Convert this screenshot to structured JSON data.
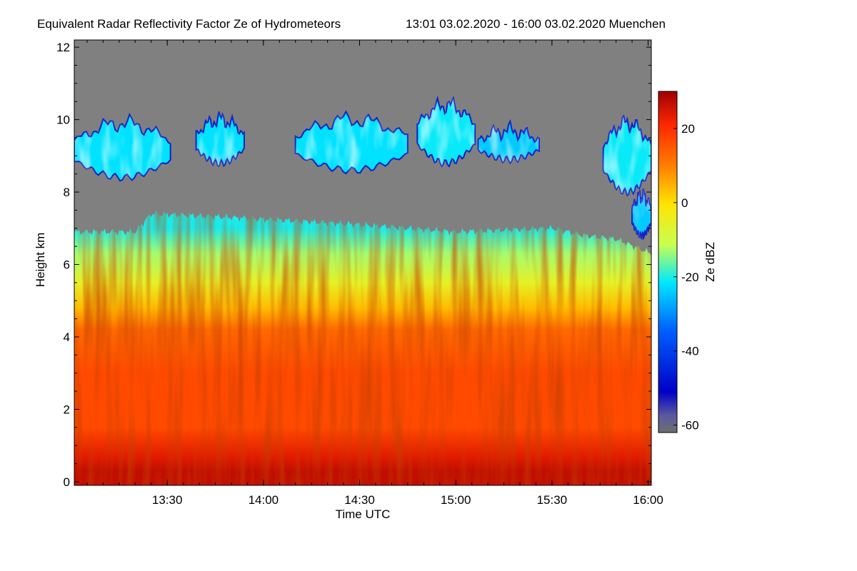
{
  "chart_data": {
    "type": "heatmap",
    "title": "Equivalent Radar Reflectivity Factor Ze of Hydrometeors",
    "subtitle": "13:01 03.02.2020 - 16:00 03.02.2020 Muenchen",
    "xlabel": "Time UTC",
    "ylabel": "Height km",
    "colorbar_label": "Ze dBZ",
    "xlim_minutes_utc": [
      781,
      961
    ],
    "x_tick_values_minutes_utc": [
      810,
      840,
      870,
      900,
      930,
      960
    ],
    "x_tick_labels": [
      "13:30",
      "14:00",
      "14:30",
      "15:00",
      "15:30",
      "16:00"
    ],
    "ylim": [
      -0.1,
      12.2
    ],
    "y_ticks": [
      0,
      2,
      4,
      6,
      8,
      10,
      12
    ],
    "y_tick_labels": [
      "0",
      "2",
      "4",
      "6",
      "8",
      "10",
      "12"
    ],
    "zlim": [
      -62,
      30
    ],
    "colorbar_ticks": [
      20,
      0,
      -20,
      -40,
      -60
    ],
    "colorbar_tick_labels": [
      "20",
      "0",
      "-20",
      "-40",
      "-60"
    ],
    "colormap": [
      "#6e6e6e",
      "#0000c8",
      "#0060ff",
      "#00e8ff",
      "#c8ff50",
      "#ffe400",
      "#ff8000",
      "#ff2800",
      "#a00000"
    ],
    "no_signal_color": "#808080",
    "lower_cloud": {
      "top_height_km": {
        "x_minutes": [
          781,
          800,
          805,
          830,
          870,
          900,
          930,
          940,
          950,
          961
        ],
        "values": [
          6.9,
          6.9,
          7.4,
          7.3,
          7.1,
          6.9,
          7.0,
          6.8,
          6.7,
          6.3
        ]
      },
      "profile_ze_dbz": {
        "height_km": [
          0.3,
          0.7,
          1.5,
          3.0,
          4.2,
          4.8,
          5.5,
          6.3,
          7.0
        ],
        "values": [
          26,
          22,
          14,
          14,
          10,
          0,
          -10,
          -18,
          -26
        ]
      }
    },
    "upper_cloud_layers": [
      {
        "x_start_minutes": 781,
        "x_end_minutes": 811,
        "base_km": 8.4,
        "top_km": 9.9,
        "ze_dbz": -28
      },
      {
        "x_start_minutes": 819,
        "x_end_minutes": 834,
        "base_km": 8.8,
        "top_km": 10.0,
        "ze_dbz": -28
      },
      {
        "x_start_minutes": 850,
        "x_end_minutes": 885,
        "base_km": 8.6,
        "top_km": 10.0,
        "ze_dbz": -28
      },
      {
        "x_start_minutes": 888,
        "x_end_minutes": 906,
        "base_km": 8.8,
        "top_km": 10.4,
        "ze_dbz": -27
      },
      {
        "x_start_minutes": 907,
        "x_end_minutes": 926,
        "base_km": 8.9,
        "top_km": 9.7,
        "ze_dbz": -30
      },
      {
        "x_start_minutes": 946,
        "x_end_minutes": 961,
        "base_km": 8.0,
        "top_km": 9.9,
        "ze_dbz": -27
      },
      {
        "x_start_minutes": 955,
        "x_end_minutes": 961,
        "base_km": 6.8,
        "top_km": 7.9,
        "ze_dbz": -30
      }
    ]
  }
}
